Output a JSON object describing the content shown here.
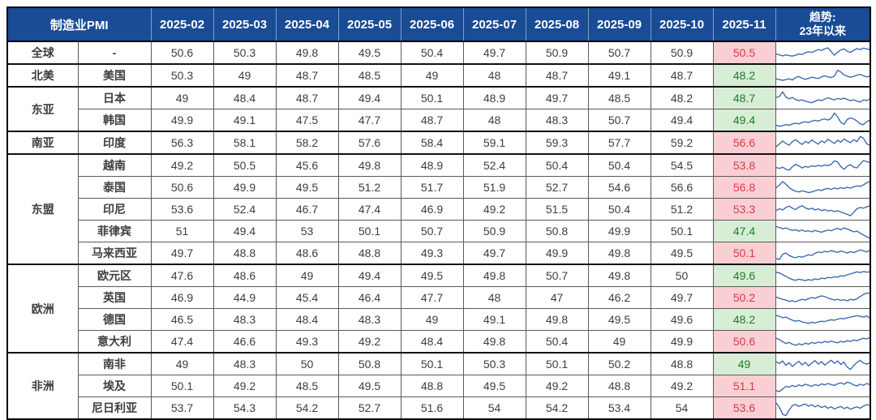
{
  "colors": {
    "header_bg": "#1a4c96",
    "header_text": "#ffffff",
    "label_bg": "#f2f2f2",
    "up_bg": "#f9cfd4",
    "up_text": "#d93a47",
    "down_bg": "#d7edd5",
    "down_text": "#217a28",
    "spark_line": "#3e6cb0"
  },
  "chart_data": {
    "type": "table",
    "title": "制造业PMI",
    "columns": [
      "2025-02",
      "2025-03",
      "2025-04",
      "2025-05",
      "2025-06",
      "2025-07",
      "2025-08",
      "2025-09",
      "2025-10",
      "2025-11"
    ],
    "trend_header": {
      "line1": "趋势:",
      "line2": "23年以来"
    },
    "groups": [
      {
        "region": "全球",
        "rows": [
          {
            "country": "-",
            "values": [
              "50.6",
              "50.3",
              "49.8",
              "49.5",
              "50.4",
              "49.7",
              "50.9",
              "50.7",
              "50.9",
              "50.5"
            ],
            "state": "red",
            "spark": [
              45,
              40,
              34,
              40,
              36,
              33,
              38,
              45,
              42,
              52,
              58,
              54,
              62,
              70,
              66,
              74,
              80,
              58,
              38,
              55,
              68,
              74,
              60,
              54,
              66,
              76,
              70,
              78,
              74,
              68
            ]
          }
        ]
      },
      {
        "region": "北美",
        "rows": [
          {
            "country": "美国",
            "values": [
              "50.3",
              "49",
              "48.7",
              "48.5",
              "49",
              "48",
              "48.7",
              "49.1",
              "48.7",
              "48.2"
            ],
            "state": "green",
            "spark": [
              32,
              28,
              24,
              28,
              33,
              26,
              40,
              46,
              36,
              30,
              35,
              42,
              38,
              34,
              44,
              50,
              44,
              40,
              48,
              82,
              72,
              55,
              48,
              42,
              46,
              54,
              58,
              50,
              44,
              48
            ]
          }
        ]
      },
      {
        "region": "东亚",
        "rows": [
          {
            "country": "日本",
            "values": [
              "49",
              "48.4",
              "48.7",
              "49.4",
              "50.1",
              "48.9",
              "49.7",
              "48.5",
              "48.2",
              "48.7"
            ],
            "state": "green",
            "spark": [
              55,
              62,
              88,
              58,
              48,
              56,
              44,
              38,
              42,
              35,
              30,
              26,
              34,
              42,
              38,
              46,
              54,
              48,
              42,
              50,
              46,
              52,
              44,
              38,
              42,
              35,
              30,
              42,
              38,
              48
            ]
          },
          {
            "country": "韩国",
            "values": [
              "49.9",
              "49.1",
              "47.5",
              "47.7",
              "48.7",
              "48",
              "48.3",
              "50.7",
              "49.4",
              "49.4"
            ],
            "state": "green",
            "spark": [
              22,
              16,
              20,
              26,
              22,
              30,
              34,
              30,
              38,
              42,
              38,
              46,
              50,
              46,
              54,
              58,
              52,
              62,
              92,
              70,
              38,
              28,
              56,
              64,
              58,
              46,
              30,
              26,
              42,
              52
            ]
          }
        ]
      },
      {
        "region": "南亚",
        "rows": [
          {
            "country": "印度",
            "values": [
              "56.3",
              "58.1",
              "58.2",
              "57.6",
              "58.4",
              "59.1",
              "59.3",
              "57.7",
              "59.2",
              "56.6"
            ],
            "state": "red",
            "spark": [
              30,
              45,
              62,
              48,
              38,
              58,
              70,
              55,
              42,
              60,
              50,
              68,
              56,
              44,
              62,
              52,
              72,
              60,
              48,
              66,
              55,
              74,
              62,
              52,
              70,
              58,
              88,
              78,
              46,
              38
            ]
          }
        ]
      },
      {
        "region": "东盟",
        "rows": [
          {
            "country": "越南",
            "values": [
              "49.2",
              "50.5",
              "45.6",
              "49.8",
              "48.9",
              "52.4",
              "50.4",
              "50.4",
              "54.5",
              "53.8"
            ],
            "state": "red",
            "spark": [
              40,
              35,
              42,
              30,
              25,
              45,
              58,
              50,
              38,
              46,
              42,
              50,
              46,
              52,
              48,
              55,
              50,
              58,
              78,
              72,
              45,
              30,
              48,
              56,
              42,
              38,
              60,
              80,
              74,
              68
            ]
          },
          {
            "country": "泰国",
            "values": [
              "50.6",
              "49.9",
              "49.5",
              "51.2",
              "51.7",
              "51.9",
              "52.7",
              "54.6",
              "56.6",
              "56.8"
            ],
            "state": "red",
            "spark": [
              50,
              65,
              85,
              70,
              50,
              38,
              30,
              26,
              32,
              28,
              22,
              26,
              32,
              38,
              34,
              42,
              46,
              40,
              48,
              44,
              50,
              46,
              52,
              48,
              55,
              60,
              58,
              66,
              78,
              85
            ]
          },
          {
            "country": "印尼",
            "values": [
              "53.6",
              "52.4",
              "46.7",
              "47.4",
              "46.9",
              "49.2",
              "51.5",
              "50.4",
              "51.2",
              "53.3"
            ],
            "state": "red",
            "spark": [
              45,
              55,
              48,
              62,
              70,
              58,
              50,
              64,
              72,
              60,
              52,
              58,
              48,
              54,
              44,
              50,
              42,
              46,
              38,
              44,
              36,
              30,
              22,
              15,
              35,
              55,
              62,
              58,
              66,
              72
            ]
          },
          {
            "country": "菲律宾",
            "values": [
              "51",
              "49.4",
              "53",
              "50.1",
              "50.7",
              "50.9",
              "50.8",
              "49.9",
              "50.1",
              "47.4"
            ],
            "state": "green",
            "spark": [
              78,
              72,
              66,
              70,
              62,
              56,
              60,
              52,
              58,
              50,
              54,
              48,
              56,
              50,
              46,
              52,
              58,
              54,
              62,
              68,
              60,
              70,
              64,
              56,
              48,
              52,
              40,
              30,
              20,
              10
            ]
          },
          {
            "country": "马来西亚",
            "values": [
              "49.7",
              "48.8",
              "48.6",
              "48.8",
              "49.3",
              "49.7",
              "49.9",
              "49.8",
              "49.5",
              "50.1"
            ],
            "state": "red",
            "spark": [
              20,
              15,
              45,
              52,
              38,
              30,
              25,
              32,
              28,
              35,
              42,
              38,
              50,
              58,
              54,
              62,
              58,
              66,
              60,
              56,
              64,
              58,
              52,
              60,
              54,
              62,
              70,
              64,
              58,
              68
            ]
          }
        ]
      },
      {
        "region": "欧洲",
        "rows": [
          {
            "country": "欧元区",
            "values": [
              "47.6",
              "48.6",
              "49",
              "49.4",
              "49.5",
              "49.8",
              "50.7",
              "49.8",
              "50",
              "49.6"
            ],
            "state": "green",
            "spark": [
              72,
              68,
              58,
              48,
              38,
              30,
              26,
              32,
              28,
              24,
              30,
              26,
              34,
              30,
              38,
              35,
              42,
              40,
              46,
              44,
              52,
              50,
              58,
              62,
              68,
              74,
              70,
              76,
              72,
              74
            ]
          },
          {
            "country": "英国",
            "values": [
              "46.9",
              "44.9",
              "45.4",
              "46.4",
              "47.7",
              "48",
              "47",
              "46.2",
              "49.7",
              "50.2"
            ],
            "state": "red",
            "spark": [
              55,
              48,
              42,
              38,
              30,
              34,
              28,
              36,
              42,
              38,
              46,
              52,
              48,
              56,
              62,
              58,
              50,
              44,
              38,
              42,
              36,
              40,
              34,
              42,
              38,
              46,
              58,
              70,
              78,
              76
            ]
          },
          {
            "country": "德国",
            "values": [
              "46.5",
              "48.3",
              "48.4",
              "48.3",
              "49",
              "49.1",
              "49.8",
              "49.5",
              "49.6",
              "48.2"
            ],
            "state": "green",
            "spark": [
              75,
              70,
              62,
              66,
              56,
              48,
              42,
              46,
              38,
              34,
              30,
              36,
              32,
              38,
              42,
              40,
              46,
              50,
              48,
              54,
              58,
              56,
              62,
              66,
              70,
              74,
              70,
              66,
              72,
              60
            ]
          },
          {
            "country": "意大利",
            "values": [
              "47.4",
              "46.6",
              "49.3",
              "49.2",
              "48.4",
              "49.8",
              "50.4",
              "49",
              "49.9",
              "50.6"
            ],
            "state": "red",
            "spark": [
              70,
              62,
              50,
              40,
              46,
              36,
              30,
              38,
              32,
              42,
              36,
              46,
              40,
              48,
              44,
              52,
              46,
              54,
              48,
              44,
              52,
              48,
              56,
              52,
              60,
              56,
              64,
              70,
              66,
              74
            ]
          }
        ]
      },
      {
        "region": "非洲",
        "rows": [
          {
            "country": "南非",
            "values": [
              "49",
              "48.3",
              "50",
              "50.8",
              "50.1",
              "50.3",
              "50.1",
              "50.2",
              "48.8",
              "49"
            ],
            "state": "green",
            "spark": [
              65,
              55,
              70,
              45,
              60,
              38,
              55,
              68,
              48,
              62,
              42,
              58,
              72,
              52,
              66,
              46,
              60,
              74,
              56,
              70,
              50,
              64,
              34,
              22,
              44,
              62,
              74,
              58,
              52,
              60
            ]
          },
          {
            "country": "埃及",
            "values": [
              "50.1",
              "49.2",
              "48.5",
              "49.5",
              "48.8",
              "49.5",
              "49.2",
              "48.8",
              "49.2",
              "51.1"
            ],
            "state": "red",
            "spark": [
              25,
              20,
              35,
              50,
              45,
              55,
              48,
              58,
              52,
              62,
              56,
              50,
              60,
              54,
              64,
              58,
              66,
              60,
              55,
              65,
              70,
              62,
              74,
              68,
              58,
              52,
              62,
              56,
              66,
              60
            ]
          },
          {
            "country": "尼日利亚",
            "values": [
              "53.7",
              "54.3",
              "54.2",
              "52.7",
              "51.6",
              "54",
              "54.2",
              "53.4",
              "54",
              "53.6"
            ],
            "state": "red",
            "spark": [
              80,
              55,
              15,
              8,
              40,
              65,
              72,
              60,
              68,
              74,
              62,
              70,
              58,
              66,
              54,
              62,
              50,
              58,
              46,
              54,
              60,
              48,
              56,
              44,
              52,
              58,
              50,
              62,
              70,
              66
            ]
          }
        ]
      }
    ]
  }
}
